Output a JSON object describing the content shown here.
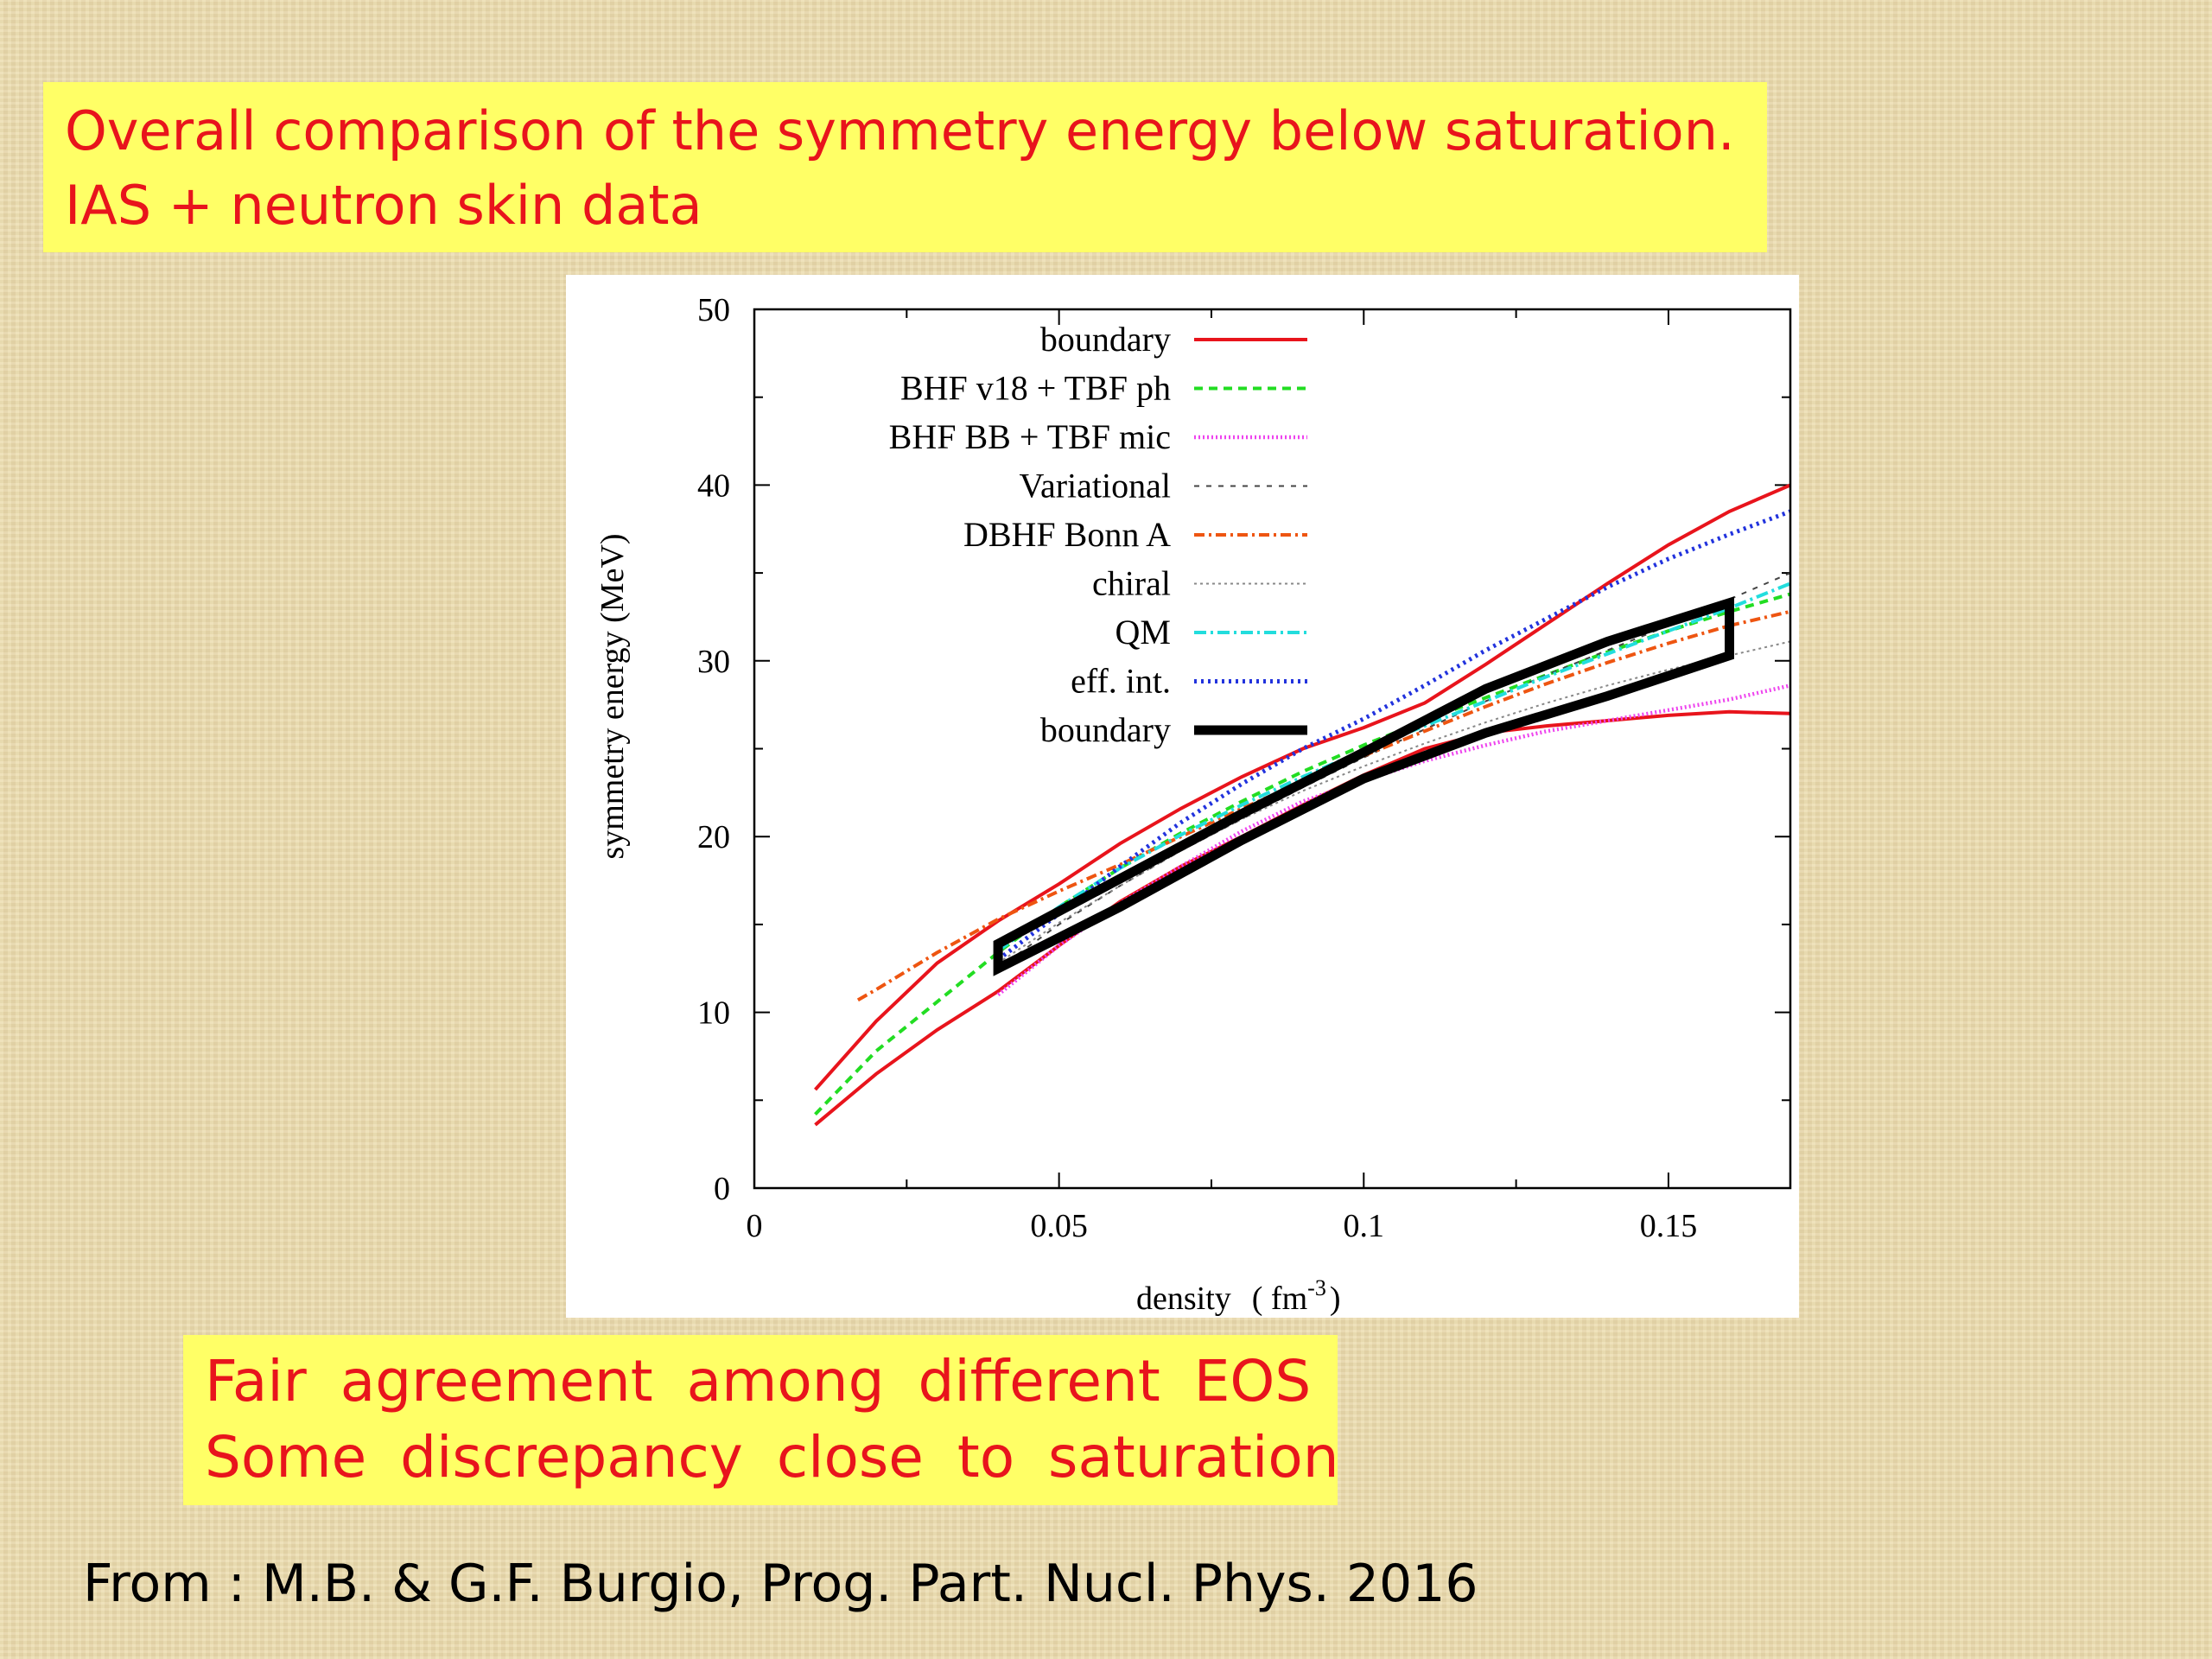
{
  "slide": {
    "title_lines": [
      "Overall comparison of the symmetry energy below saturation.",
      "IAS + neutron skin data"
    ],
    "note_lines": [
      "Fair agreement among different EOS",
      "Some discrepancy close to saturation"
    ],
    "source": "From : M.B. & G.F. Burgio, Prog. Part. Nucl. Phys. 2016",
    "colors": {
      "highlight_bg": "#ffff66",
      "highlight_text": "#e8141c"
    }
  },
  "chart_data": {
    "type": "line",
    "title": "",
    "xlabel": "density",
    "xlabel_unit": "( fm",
    "xlabel_unit_exp": "-3",
    "xlabel_unit_close": ")",
    "ylabel": "symmetry energy (MeV)",
    "xlim": [
      0,
      0.17
    ],
    "ylim": [
      0,
      50
    ],
    "xticks": [
      0,
      0.05,
      0.1,
      0.15
    ],
    "xtick_labels": [
      "0",
      "0.05",
      "0.1",
      "0.15"
    ],
    "yticks": [
      0,
      10,
      20,
      30,
      40,
      50
    ],
    "ytick_labels": [
      "0",
      "10",
      "20",
      "30",
      "40",
      "50"
    ],
    "grid": false,
    "legend_position": "top-left inside plot",
    "series": [
      {
        "name": "boundary",
        "color": "#e8141c",
        "dash": "solid",
        "width": 4,
        "points": [
          [
            0.01,
            5.6
          ],
          [
            0.02,
            9.5
          ],
          [
            0.03,
            12.8
          ],
          [
            0.04,
            15.2
          ],
          [
            0.05,
            17.3
          ],
          [
            0.06,
            19.6
          ],
          [
            0.07,
            21.6
          ],
          [
            0.08,
            23.4
          ],
          [
            0.09,
            25.0
          ],
          [
            0.1,
            26.2
          ],
          [
            0.11,
            27.6
          ],
          [
            0.12,
            29.8
          ],
          [
            0.13,
            32.1
          ],
          [
            0.14,
            34.4
          ],
          [
            0.15,
            36.6
          ],
          [
            0.16,
            38.5
          ],
          [
            0.17,
            40.0
          ]
        ]
      },
      {
        "name": "",
        "color": "#e8141c",
        "dash": "solid",
        "width": 4,
        "points": [
          [
            0.01,
            3.6
          ],
          [
            0.02,
            6.5
          ],
          [
            0.03,
            9.0
          ],
          [
            0.04,
            11.2
          ],
          [
            0.05,
            13.8
          ],
          [
            0.06,
            16.3
          ],
          [
            0.07,
            18.3
          ],
          [
            0.08,
            20.0
          ],
          [
            0.09,
            21.8
          ],
          [
            0.1,
            23.5
          ],
          [
            0.11,
            25.0
          ],
          [
            0.12,
            25.9
          ],
          [
            0.13,
            26.3
          ],
          [
            0.14,
            26.6
          ],
          [
            0.15,
            26.9
          ],
          [
            0.16,
            27.1
          ],
          [
            0.17,
            27.0
          ]
        ]
      },
      {
        "name": "BHF v18 + TBF ph",
        "color": "#22dd22",
        "dash": "10,7",
        "width": 4,
        "points": [
          [
            0.01,
            4.2
          ],
          [
            0.02,
            7.8
          ],
          [
            0.03,
            10.6
          ],
          [
            0.04,
            13.4
          ],
          [
            0.05,
            16.0
          ],
          [
            0.06,
            18.2
          ],
          [
            0.07,
            20.2
          ],
          [
            0.08,
            22.0
          ],
          [
            0.09,
            23.7
          ],
          [
            0.1,
            25.2
          ],
          [
            0.11,
            26.6
          ],
          [
            0.12,
            27.9
          ],
          [
            0.13,
            29.2
          ],
          [
            0.14,
            30.5
          ],
          [
            0.15,
            31.7
          ],
          [
            0.16,
            32.8
          ],
          [
            0.17,
            33.8
          ]
        ]
      },
      {
        "name": "BHF BB + TBF mic",
        "color": "#ee44ee",
        "dash": "2,3",
        "width": 4.5,
        "points": [
          [
            0.04,
            11.0
          ],
          [
            0.05,
            13.8
          ],
          [
            0.06,
            16.2
          ],
          [
            0.07,
            18.3
          ],
          [
            0.08,
            20.3
          ],
          [
            0.09,
            22.0
          ],
          [
            0.1,
            23.2
          ],
          [
            0.11,
            24.3
          ],
          [
            0.12,
            25.2
          ],
          [
            0.13,
            26.0
          ],
          [
            0.14,
            26.6
          ],
          [
            0.15,
            27.2
          ],
          [
            0.16,
            27.8
          ],
          [
            0.17,
            28.6
          ]
        ]
      },
      {
        "name": "Variational",
        "color": "#444444",
        "dash": "6,8",
        "width": 2,
        "points": [
          [
            0.04,
            12.5
          ],
          [
            0.05,
            15.0
          ],
          [
            0.06,
            17.2
          ],
          [
            0.07,
            19.2
          ],
          [
            0.08,
            21.0
          ],
          [
            0.09,
            22.8
          ],
          [
            0.1,
            24.5
          ],
          [
            0.11,
            26.1
          ],
          [
            0.12,
            27.7
          ],
          [
            0.13,
            29.2
          ],
          [
            0.14,
            30.6
          ],
          [
            0.15,
            32.0
          ],
          [
            0.16,
            33.5
          ],
          [
            0.17,
            35.0
          ]
        ]
      },
      {
        "name": "DBHF Bonn A",
        "color": "#ee5511",
        "dash": "12,5,3,5",
        "width": 4,
        "points": [
          [
            0.017,
            10.7
          ],
          [
            0.02,
            11.3
          ],
          [
            0.03,
            13.4
          ],
          [
            0.04,
            15.3
          ],
          [
            0.05,
            16.9
          ],
          [
            0.06,
            18.4
          ],
          [
            0.07,
            20.0
          ],
          [
            0.08,
            21.6
          ],
          [
            0.09,
            23.1
          ],
          [
            0.1,
            24.6
          ],
          [
            0.11,
            26.0
          ],
          [
            0.12,
            27.4
          ],
          [
            0.13,
            28.7
          ],
          [
            0.14,
            29.9
          ],
          [
            0.15,
            31.0
          ],
          [
            0.16,
            32.0
          ],
          [
            0.17,
            32.8
          ]
        ]
      },
      {
        "name": "chiral",
        "color": "#888888",
        "dash": "3,4",
        "width": 2,
        "points": [
          [
            0.04,
            12.8
          ],
          [
            0.05,
            15.1
          ],
          [
            0.06,
            17.2
          ],
          [
            0.07,
            19.2
          ],
          [
            0.08,
            21.0
          ],
          [
            0.09,
            22.6
          ],
          [
            0.1,
            24.0
          ],
          [
            0.11,
            25.3
          ],
          [
            0.12,
            26.5
          ],
          [
            0.13,
            27.6
          ],
          [
            0.14,
            28.6
          ],
          [
            0.15,
            29.5
          ],
          [
            0.16,
            30.3
          ],
          [
            0.17,
            31.1
          ]
        ]
      },
      {
        "name": "QM",
        "color": "#22dddd",
        "dash": "14,5,3,5",
        "width": 4,
        "points": [
          [
            0.04,
            13.5
          ],
          [
            0.05,
            16.0
          ],
          [
            0.06,
            18.2
          ],
          [
            0.07,
            20.1
          ],
          [
            0.08,
            21.8
          ],
          [
            0.09,
            23.4
          ],
          [
            0.1,
            24.9
          ],
          [
            0.11,
            26.3
          ],
          [
            0.12,
            27.7
          ],
          [
            0.13,
            29.1
          ],
          [
            0.14,
            30.4
          ],
          [
            0.15,
            31.7
          ],
          [
            0.16,
            33.0
          ],
          [
            0.17,
            34.4
          ]
        ]
      },
      {
        "name": "eff. int.",
        "color": "#2233dd",
        "dash": "3,5",
        "width": 5,
        "points": [
          [
            0.04,
            13.0
          ],
          [
            0.05,
            15.6
          ],
          [
            0.06,
            18.3
          ],
          [
            0.07,
            20.8
          ],
          [
            0.08,
            23.0
          ],
          [
            0.09,
            25.0
          ],
          [
            0.1,
            26.7
          ],
          [
            0.11,
            28.6
          ],
          [
            0.12,
            30.6
          ],
          [
            0.13,
            32.4
          ],
          [
            0.14,
            34.2
          ],
          [
            0.15,
            35.8
          ],
          [
            0.16,
            37.2
          ],
          [
            0.17,
            38.5
          ]
        ]
      },
      {
        "name": "boundary",
        "color": "#000000",
        "dash": "solid",
        "width": 11,
        "closed": true,
        "points": [
          [
            0.04,
            13.9
          ],
          [
            0.06,
            17.6
          ],
          [
            0.08,
            21.3
          ],
          [
            0.1,
            24.8
          ],
          [
            0.12,
            28.4
          ],
          [
            0.14,
            31.1
          ],
          [
            0.16,
            33.3
          ],
          [
            0.16,
            30.3
          ],
          [
            0.14,
            28.0
          ],
          [
            0.12,
            25.9
          ],
          [
            0.1,
            23.3
          ],
          [
            0.08,
            19.8
          ],
          [
            0.06,
            16.0
          ],
          [
            0.04,
            12.5
          ]
        ]
      }
    ]
  }
}
